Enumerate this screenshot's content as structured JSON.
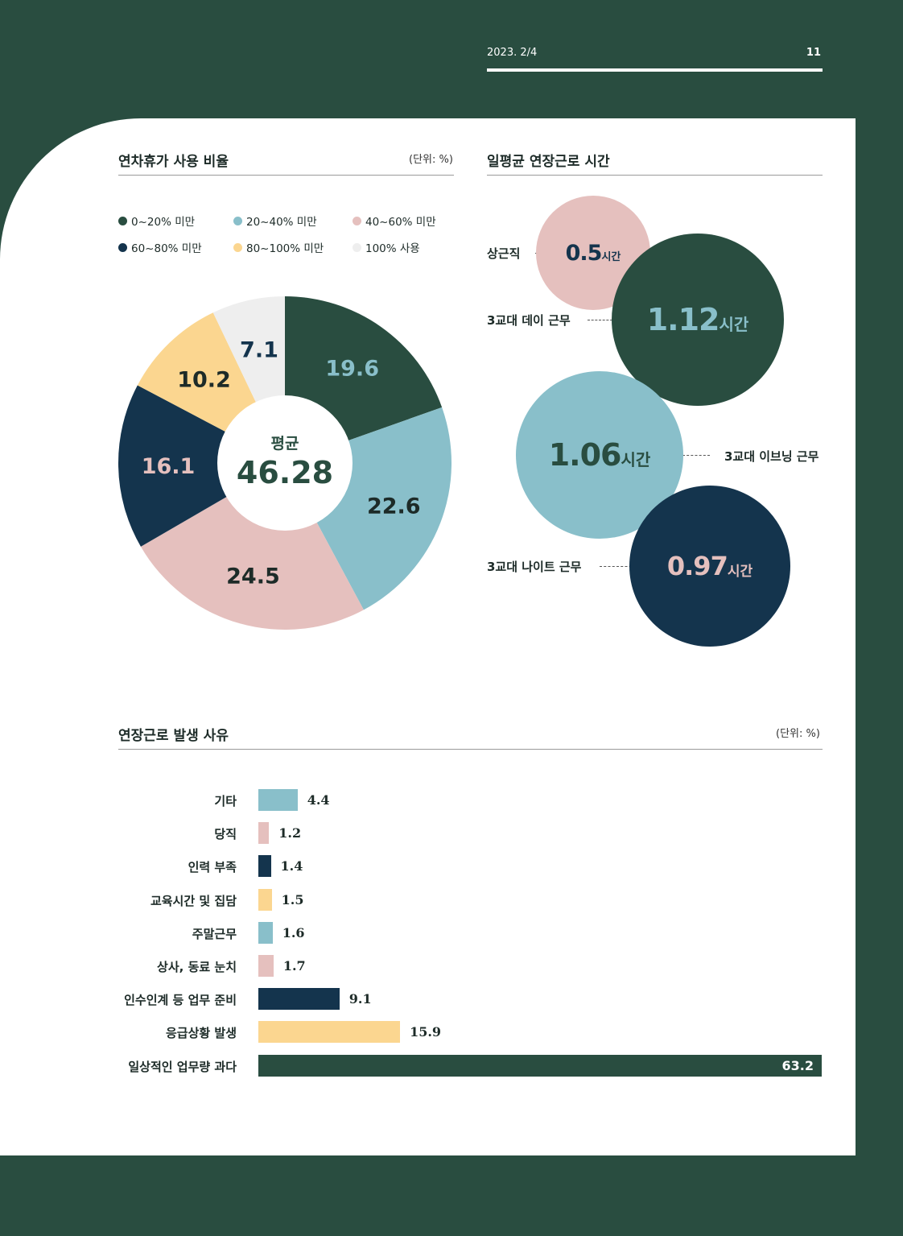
{
  "header": {
    "date": "2023. 2/4",
    "page": "11"
  },
  "colors": {
    "dark_green": "#294d40",
    "light_blue": "#89bfca",
    "pink": "#e5c0be",
    "navy": "#14344d",
    "yellow": "#fbd690",
    "light_gray": "#eeeeee"
  },
  "chart_data": [
    {
      "type": "pie",
      "title": "연차휴가 사용 비율",
      "unit": "(단위: %)",
      "legend": [
        "0~20% 미만",
        "20~40% 미만",
        "40~60% 미만",
        "60~80% 미만",
        "80~100% 미만",
        "100% 사용"
      ],
      "legend_colors": [
        "#294d40",
        "#89bfca",
        "#e5c0be",
        "#14344d",
        "#fbd690",
        "#eeeeee"
      ],
      "values": [
        19.6,
        22.6,
        24.5,
        16.1,
        10.2,
        7.1
      ],
      "labels": [
        "19.6",
        "22.6",
        "24.5",
        "16.1",
        "10.2",
        "7.1"
      ],
      "label_colors": [
        "#89bfca",
        "#1d2b28",
        "#1d2b28",
        "#e5c0be",
        "#1d2b28",
        "#14344d"
      ],
      "center_label": "평균",
      "center_value": "46.28",
      "donut": true
    },
    {
      "type": "bubble",
      "title": "일평균 연장근로 시간",
      "categories": [
        "상근직",
        "3교대 데이 근무",
        "3교대 이브닝 근무",
        "3교대 나이트 근무"
      ],
      "values": [
        0.5,
        1.12,
        1.06,
        0.97
      ],
      "value_labels": [
        "0.5",
        "1.12",
        "1.06",
        "0.97"
      ],
      "suffix": "시간"
    },
    {
      "type": "bar",
      "orientation": "horizontal",
      "title": "연장근로 발생 사유",
      "unit": "(단위: %)",
      "categories": [
        "기타",
        "당직",
        "인력 부족",
        "교육시간 및 집담",
        "주말근무",
        "상사, 동료 눈치",
        "인수인계 등 업무 준비",
        "응급상황 발생",
        "일상적인 업무량 과다"
      ],
      "values": [
        4.4,
        1.2,
        1.4,
        1.5,
        1.6,
        1.7,
        9.1,
        15.9,
        63.2
      ],
      "value_labels": [
        "4.4",
        "1.2",
        "1.4",
        "1.5",
        "1.6",
        "1.7",
        "9.1",
        "15.9",
        "63.2"
      ],
      "colors": [
        "#89bfca",
        "#e5c0be",
        "#14344d",
        "#fbd690",
        "#89bfca",
        "#e5c0be",
        "#14344d",
        "#fbd690",
        "#294d40"
      ],
      "xlim": [
        0,
        63.2
      ]
    }
  ]
}
